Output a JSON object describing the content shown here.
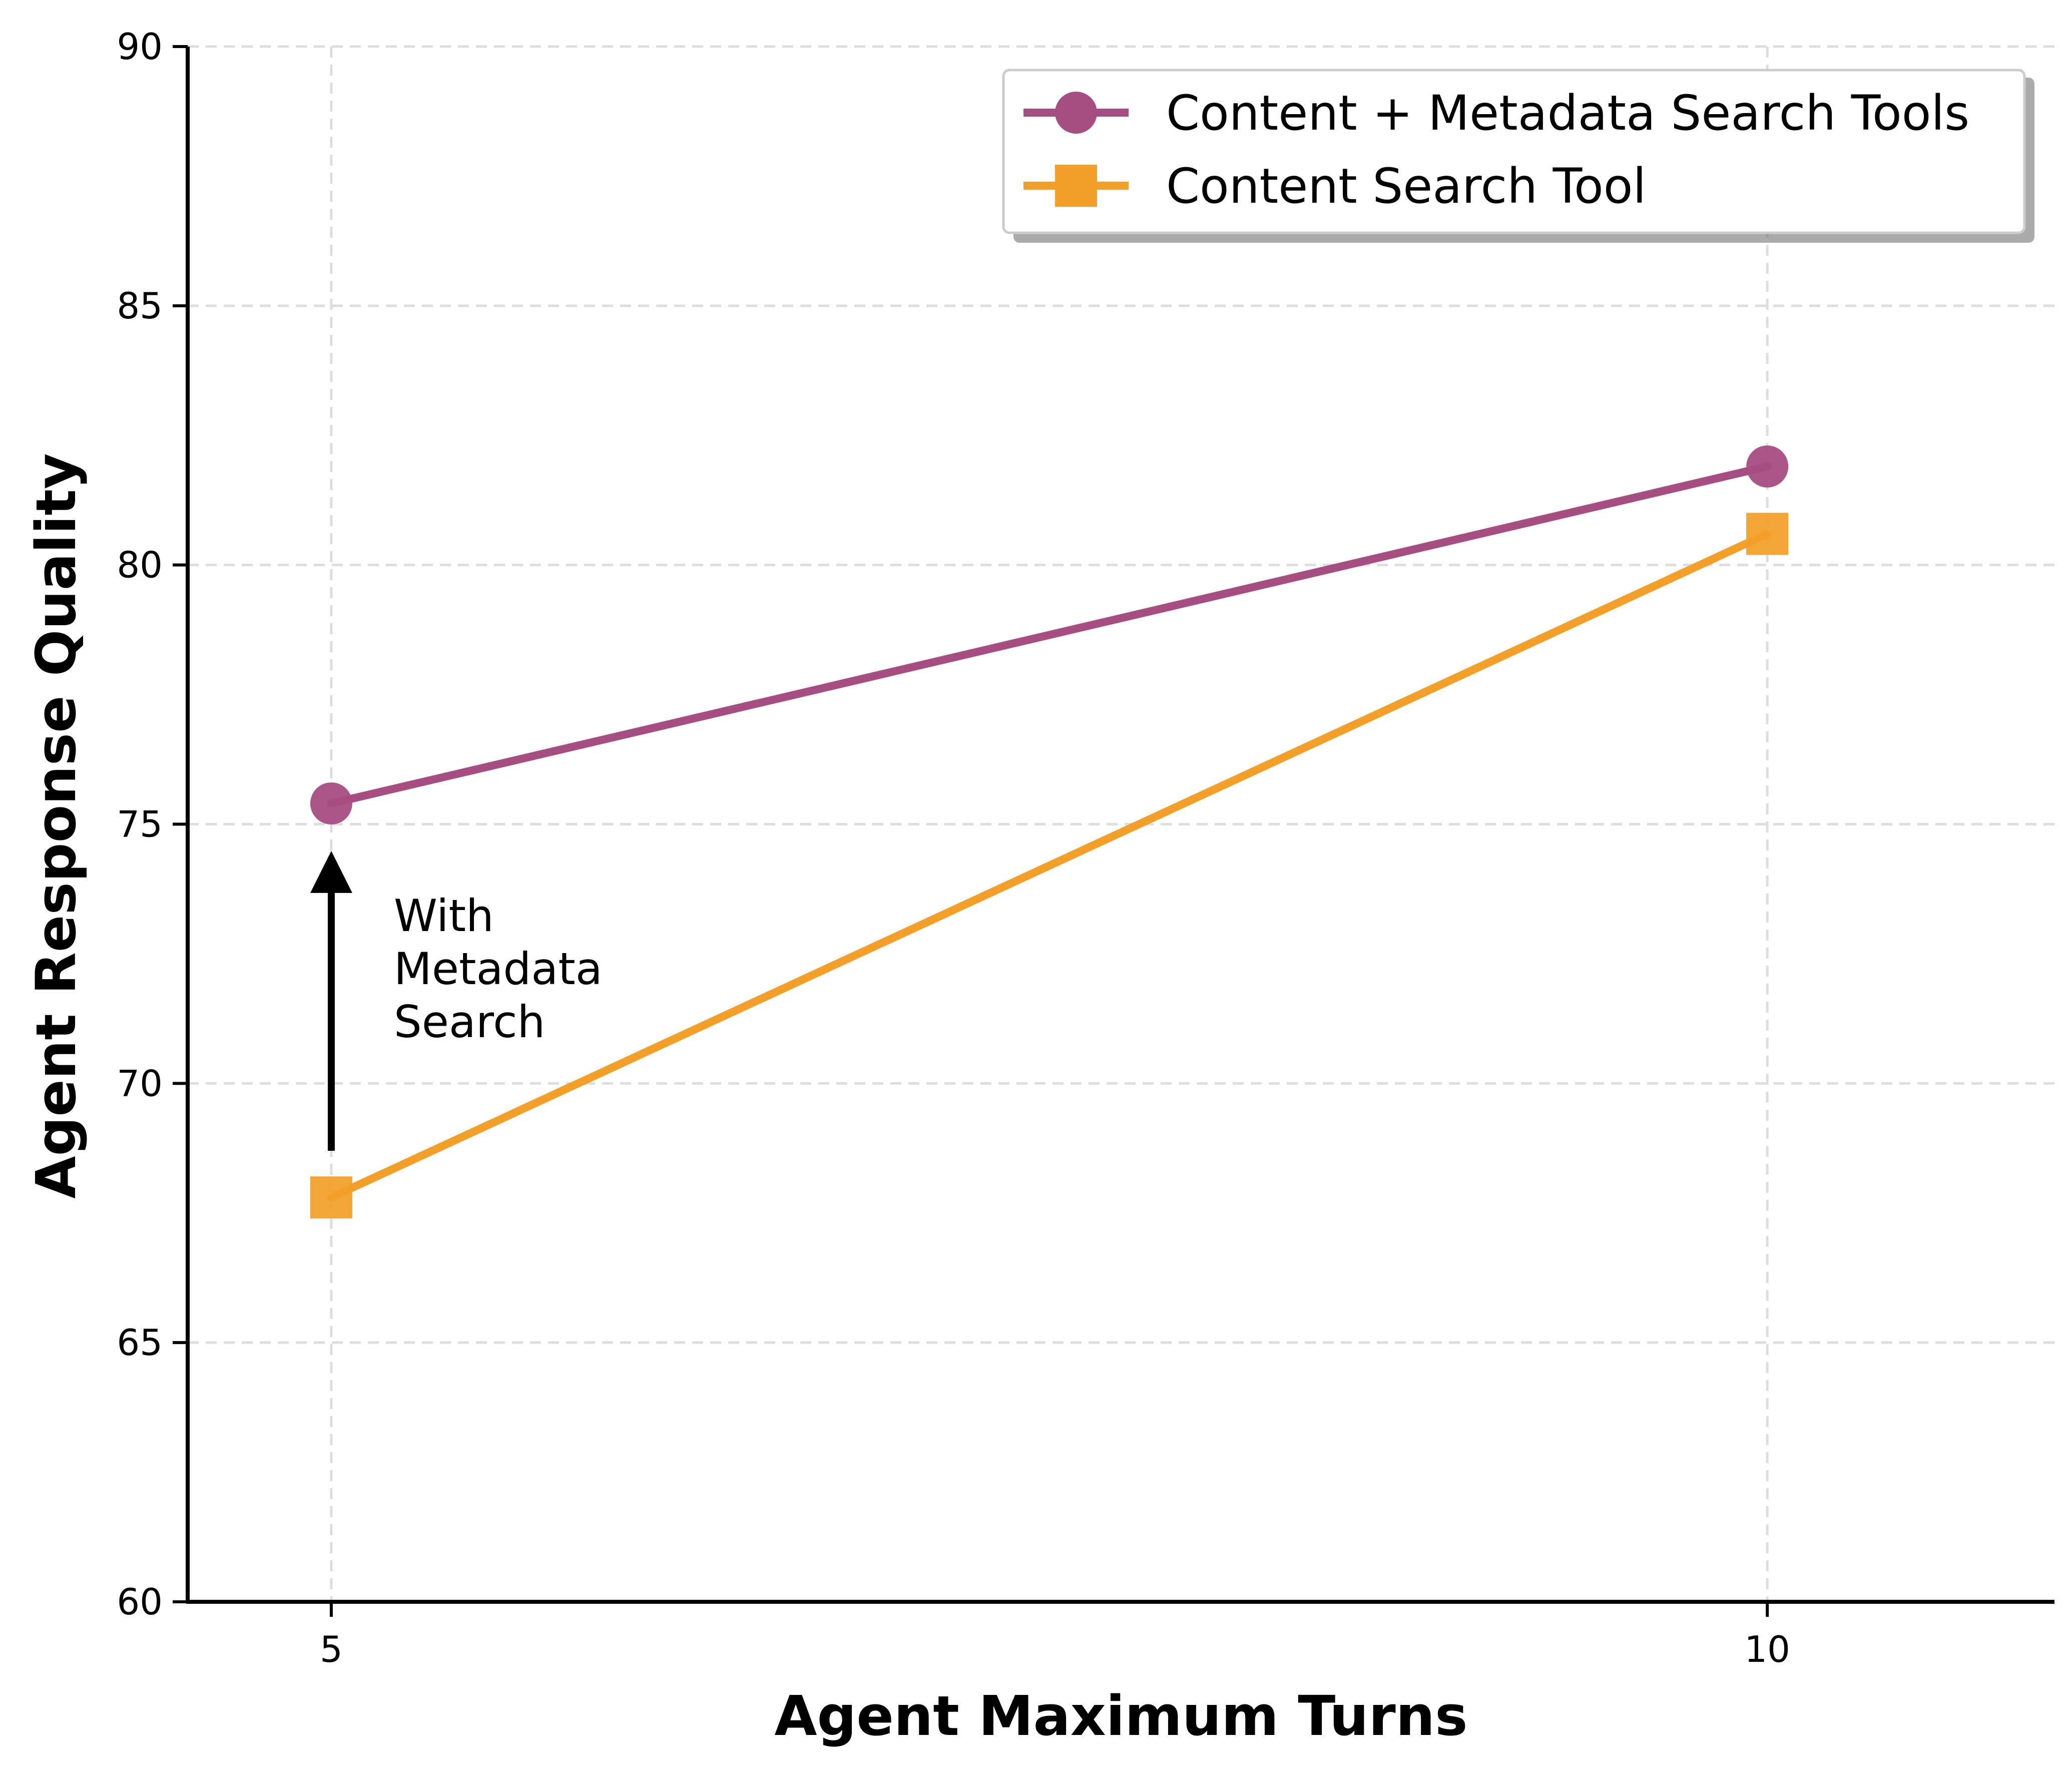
{
  "chart_data": {
    "type": "line",
    "xlabel": "Agent Maximum Turns",
    "ylabel": "Agent Response Quality",
    "x": [
      5,
      10
    ],
    "xticks": [
      5,
      10
    ],
    "xlim": [
      4.5,
      11.0
    ],
    "ylim": [
      60,
      90
    ],
    "yticks": [
      60,
      65,
      70,
      75,
      80,
      85,
      90
    ],
    "grid": true,
    "legend_position": "top-right",
    "series": [
      {
        "name": "Content + Metadata Search Tools",
        "values": [
          75.4,
          81.9
        ],
        "color": "#A64D82",
        "marker": "circle"
      },
      {
        "name": "Content Search Tool",
        "values": [
          67.8,
          80.6
        ],
        "color": "#F2A02A",
        "marker": "square"
      }
    ],
    "annotation": {
      "lines": [
        "With",
        "Metadata",
        "Search"
      ],
      "arrow_from": [
        5,
        68.7
      ],
      "arrow_to": [
        5,
        74.6
      ]
    }
  }
}
